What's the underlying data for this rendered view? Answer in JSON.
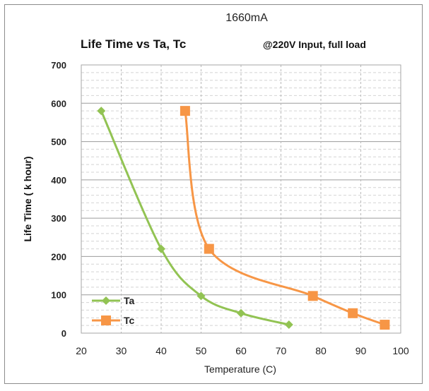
{
  "top_label": "1660mA",
  "chart_data": {
    "type": "line",
    "title": "Life Time vs Ta, Tc",
    "subtitle": "@220V Input, full load",
    "xlabel": "Temperature (C)",
    "ylabel": "Life Time ( k hour)",
    "xlim": [
      20,
      100
    ],
    "ylim": [
      0,
      700
    ],
    "xticks": [
      "20",
      "30",
      "40",
      "50",
      "60",
      "70",
      "80",
      "90",
      "100"
    ],
    "yticks": [
      "0",
      "100",
      "200",
      "300",
      "400",
      "500",
      "600",
      "700"
    ],
    "grid": true,
    "legend_position": "bottom-left",
    "series": [
      {
        "name": "Ta",
        "color": "#92c353",
        "marker": "diamond",
        "x": [
          25,
          40,
          50,
          60,
          72
        ],
        "y": [
          580,
          220,
          97,
          52,
          22
        ]
      },
      {
        "name": "Tc",
        "color": "#f79646",
        "marker": "square",
        "x": [
          46,
          52,
          78,
          88,
          96
        ],
        "y": [
          580,
          220,
          97,
          52,
          22
        ]
      }
    ]
  }
}
